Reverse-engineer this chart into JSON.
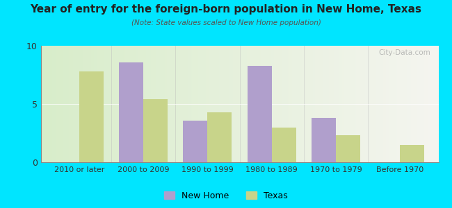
{
  "title": "Year of entry for the foreign-born population in New Home, Texas",
  "subtitle": "(Note: State values scaled to New Home population)",
  "categories": [
    "2010 or later",
    "2000 to 2009",
    "1990 to 1999",
    "1980 to 1989",
    "1970 to 1979",
    "Before 1970"
  ],
  "new_home_values": [
    0,
    8.6,
    3.6,
    8.3,
    3.8,
    0
  ],
  "texas_values": [
    7.8,
    5.4,
    4.3,
    3.0,
    2.3,
    1.5
  ],
  "new_home_color": "#b09fcc",
  "texas_color": "#c8d48a",
  "ylim": [
    0,
    10
  ],
  "yticks": [
    0,
    5,
    10
  ],
  "bar_width": 0.38,
  "background_outer": "#00e5ff",
  "legend_new_home": "New Home",
  "legend_texas": "Texas",
  "watermark": "City-Data.com"
}
